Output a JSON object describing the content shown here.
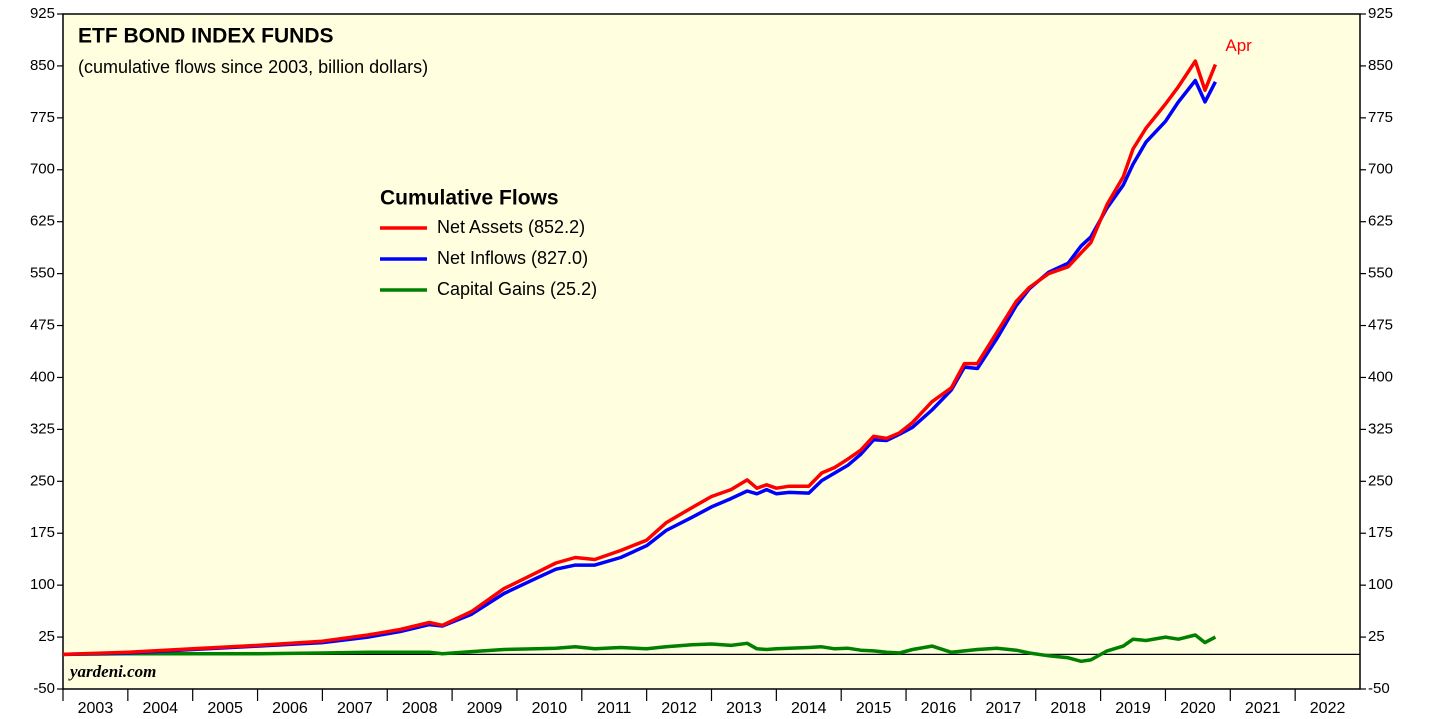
{
  "chart_data": {
    "type": "line",
    "title": "ETF BOND INDEX FUNDS",
    "subtitle": "(cumulative flows since 2003, billion dollars)",
    "legend_title": "Cumulative Flows",
    "annotation": "Apr",
    "source": "yardeni.com",
    "x": [
      2003.0,
      2004.0,
      2005.0,
      2006.0,
      2007.0,
      2007.7,
      2008.2,
      2008.65,
      2008.85,
      2009.3,
      2009.8,
      2010.3,
      2010.6,
      2010.9,
      2011.2,
      2011.6,
      2012.0,
      2012.3,
      2012.7,
      2013.0,
      2013.3,
      2013.55,
      2013.7,
      2013.85,
      2014.0,
      2014.2,
      2014.5,
      2014.7,
      2014.9,
      2015.1,
      2015.3,
      2015.5,
      2015.7,
      2015.9,
      2016.1,
      2016.4,
      2016.7,
      2016.9,
      2017.1,
      2017.4,
      2017.7,
      2017.9,
      2018.2,
      2018.5,
      2018.7,
      2018.85,
      2019.1,
      2019.35,
      2019.5,
      2019.7,
      2020.0,
      2020.2,
      2020.46,
      2020.61,
      2020.77
    ],
    "series": [
      {
        "name": "Net Assets (852.2)",
        "color": "#ff0000",
        "values": [
          0,
          3,
          8,
          13,
          19,
          28,
          36,
          46,
          42,
          62,
          95,
          118,
          132,
          140,
          137,
          150,
          165,
          190,
          212,
          228,
          238,
          252,
          240,
          245,
          240,
          243,
          243,
          262,
          270,
          282,
          295,
          315,
          312,
          320,
          335,
          365,
          385,
          420,
          420,
          465,
          510,
          530,
          550,
          560,
          580,
          595,
          650,
          690,
          730,
          760,
          795,
          820,
          857,
          815,
          852
        ]
      },
      {
        "name": "Net Inflows (827.0)",
        "color": "#0000ff",
        "values": [
          0,
          2,
          7,
          12,
          17,
          25,
          33,
          43,
          41,
          58,
          88,
          110,
          123,
          129,
          129,
          140,
          157,
          179,
          198,
          213,
          225,
          236,
          232,
          238,
          232,
          234,
          233,
          251,
          262,
          273,
          289,
          310,
          309,
          318,
          328,
          353,
          382,
          415,
          413,
          456,
          504,
          528,
          552,
          565,
          590,
          603,
          645,
          678,
          708,
          740,
          770,
          798,
          829,
          798,
          827
        ]
      },
      {
        "name": "Capital Gains (25.2)",
        "color": "#008000",
        "values": [
          0,
          1,
          1,
          1,
          2,
          3,
          3,
          3,
          1,
          4,
          7,
          8,
          9,
          11,
          8,
          10,
          8,
          11,
          14,
          15,
          13,
          16,
          8,
          7,
          8,
          9,
          10,
          11,
          8,
          9,
          6,
          5,
          3,
          2,
          7,
          12,
          3,
          5,
          7,
          9,
          6,
          2,
          -2,
          -5,
          -10,
          -8,
          5,
          12,
          22,
          20,
          25,
          22,
          28,
          17,
          25
        ]
      }
    ],
    "xlim": [
      2003,
      2023
    ],
    "xticks": [
      2003,
      2004,
      2005,
      2006,
      2007,
      2008,
      2009,
      2010,
      2011,
      2012,
      2013,
      2014,
      2015,
      2016,
      2017,
      2018,
      2019,
      2020,
      2021,
      2022
    ],
    "ylim": [
      -50,
      925
    ],
    "yticks": [
      -50,
      25,
      100,
      175,
      250,
      325,
      400,
      475,
      550,
      625,
      700,
      775,
      850,
      925
    ],
    "y2lim": [
      -50,
      925
    ],
    "y2ticks": [
      -50,
      25,
      100,
      175,
      250,
      325,
      400,
      475,
      550,
      625,
      700,
      775,
      850,
      925
    ],
    "background": "#ffffe0"
  }
}
